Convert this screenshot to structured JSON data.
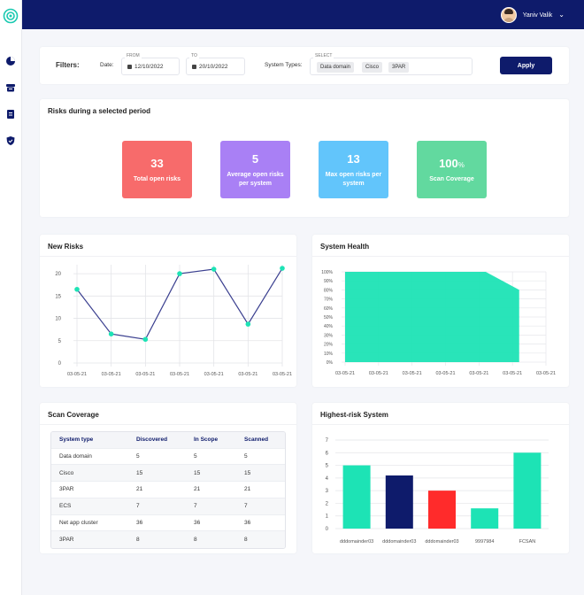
{
  "user": {
    "name": "Yaniv Valik"
  },
  "filters": {
    "title": "Filters:",
    "date_label": "Date:",
    "from_caption": "FROM",
    "from_value": "12/10/2022",
    "to_caption": "TO",
    "to_value": "20/10/2022",
    "system_types_label": "System Types:",
    "select_caption": "SELECT",
    "chips": [
      "Data domain",
      "Cisco",
      "3PAR"
    ],
    "apply_label": "Apply"
  },
  "risks_period": {
    "title": "Risks during a selected period",
    "kpis": [
      {
        "value": "33",
        "unit": "",
        "label": "Total open risks",
        "color": "#f76b6b"
      },
      {
        "value": "5",
        "unit": "",
        "label": "Average open risks per system",
        "color": "#a980f5"
      },
      {
        "value": "13",
        "unit": "",
        "label": "Max open risks per system",
        "color": "#62c5fb"
      },
      {
        "value": "100",
        "unit": "%",
        "label": "Scan Coverage",
        "color": "#62d99f"
      }
    ]
  },
  "new_risks": {
    "title": "New Risks"
  },
  "system_health": {
    "title": "System Health"
  },
  "scan_coverage": {
    "title": "Scan Coverage",
    "columns": [
      "System type",
      "Discovered",
      "In Scope",
      "Scanned"
    ],
    "rows": [
      [
        "Data domain",
        "5",
        "5",
        "5"
      ],
      [
        "Cisco",
        "15",
        "15",
        "15"
      ],
      [
        "3PAR",
        "21",
        "21",
        "21"
      ],
      [
        "ECS",
        "7",
        "7",
        "7"
      ],
      [
        "Net app cluster",
        "36",
        "36",
        "36"
      ],
      [
        "3PAR",
        "8",
        "8",
        "8"
      ]
    ]
  },
  "highest_risk": {
    "title": "Highest-risk System"
  },
  "colors": {
    "navy": "#0e1b6b",
    "teal": "#1de3b5",
    "line": "#3a3f8f",
    "red": "#ff2b2b"
  },
  "chart_data": [
    {
      "type": "line",
      "x": [
        "03-05-21",
        "03-05-21",
        "03-05-21",
        "03-05-21",
        "03-05-21",
        "03-05-21",
        "03-05-21"
      ],
      "values": [
        16.5,
        6.5,
        5.3,
        20,
        21,
        8.7,
        21.2
      ],
      "ylim": [
        0,
        22
      ],
      "yticks": [
        0,
        5,
        10,
        15,
        20
      ],
      "grid": true
    },
    {
      "type": "area",
      "x": [
        "03-05-21",
        "03-05-21",
        "03-05-21",
        "03-05-21",
        "03-05-21",
        "03-05-21",
        "03-05-21"
      ],
      "yticks": [
        "0%",
        "10%",
        "20%",
        "30%",
        "40%",
        "50%",
        "60%",
        "70%",
        "80%",
        "90%",
        "100%"
      ],
      "points": [
        [
          0,
          100
        ],
        [
          4.2,
          100
        ],
        [
          5.2,
          80
        ],
        [
          5.2,
          0
        ]
      ],
      "ylim": [
        0,
        100
      ],
      "grid": true
    },
    {
      "type": "bar",
      "categories": [
        "dddomainder03",
        "dddomainder03",
        "dddomainder03",
        "9997984",
        "FCSAN"
      ],
      "values": [
        5,
        4.2,
        3,
        1.6,
        6
      ],
      "colors": [
        "#1de3b5",
        "#0e1b6b",
        "#ff2b2b",
        "#1de3b5",
        "#1de3b5"
      ],
      "ylim": [
        0,
        7
      ],
      "yticks": [
        0,
        1,
        2,
        3,
        4,
        5,
        6,
        7
      ],
      "grid": true
    }
  ]
}
